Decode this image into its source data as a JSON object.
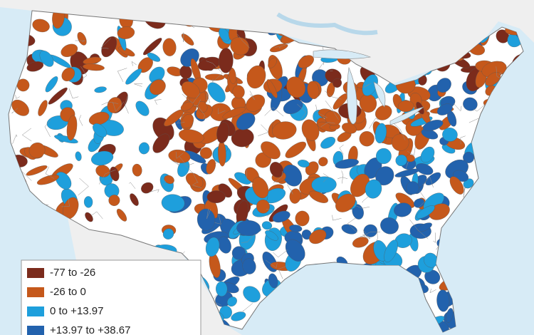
{
  "legend": {
    "items": [
      {
        "label": "-77 to -26",
        "color": "#7b2b1c"
      },
      {
        "label": "-26 to 0",
        "color": "#c5581b"
      },
      {
        "label": "0 to +13.97",
        "color": "#1e9fdc"
      },
      {
        "label": "+13.97 to +38.67",
        "color": "#2262ad"
      }
    ]
  }
}
